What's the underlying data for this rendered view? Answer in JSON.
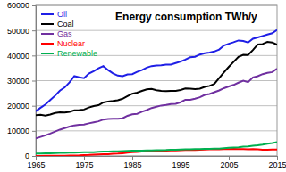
{
  "chart_data": {
    "type": "line",
    "title": "Energy consumption TWh/y",
    "x": [
      1965,
      1966,
      1967,
      1968,
      1969,
      1970,
      1971,
      1972,
      1973,
      1974,
      1975,
      1976,
      1977,
      1978,
      1979,
      1980,
      1981,
      1982,
      1983,
      1984,
      1985,
      1986,
      1987,
      1988,
      1989,
      1990,
      1991,
      1992,
      1993,
      1994,
      1995,
      1996,
      1997,
      1998,
      1999,
      2000,
      2001,
      2002,
      2003,
      2004,
      2005,
      2006,
      2007,
      2008,
      2009,
      2010,
      2011,
      2012,
      2013,
      2014,
      2015
    ],
    "series": [
      {
        "name": "Oil",
        "color": "#1f1fe6",
        "values": [
          17800,
          19200,
          20500,
          22300,
          24000,
          26000,
          27300,
          29300,
          31800,
          31300,
          31000,
          32800,
          33800,
          34900,
          35800,
          34200,
          32900,
          32000,
          31800,
          32500,
          32600,
          33500,
          34200,
          35200,
          35800,
          36000,
          36100,
          36400,
          36400,
          37000,
          37600,
          38400,
          39300,
          39500,
          40400,
          40900,
          41200,
          41600,
          42400,
          44000,
          44700,
          45300,
          46000,
          45800,
          45200,
          46700,
          47200,
          47800,
          48400,
          48900,
          50200
        ]
      },
      {
        "name": "Coal",
        "color": "#000000",
        "values": [
          16200,
          16400,
          16100,
          16500,
          17100,
          17400,
          17300,
          17600,
          18200,
          18300,
          18500,
          19300,
          19900,
          20200,
          21300,
          21700,
          21900,
          22200,
          22800,
          23800,
          24800,
          25200,
          25900,
          26500,
          26700,
          26200,
          25900,
          25800,
          25900,
          25900,
          26300,
          26900,
          26800,
          26600,
          26800,
          27500,
          27900,
          28700,
          31000,
          33300,
          35500,
          37500,
          39500,
          40300,
          40200,
          42200,
          44400,
          44600,
          45400,
          45200,
          44300
        ]
      },
      {
        "name": "Gas",
        "color": "#7030a0",
        "values": [
          7000,
          7600,
          8200,
          8900,
          9700,
          10500,
          11100,
          11700,
          12200,
          12400,
          12500,
          13000,
          13400,
          13800,
          14500,
          14700,
          14800,
          14800,
          15000,
          16000,
          16600,
          16800,
          17600,
          18300,
          19100,
          19600,
          20100,
          20300,
          20700,
          20800,
          21400,
          22400,
          22400,
          22800,
          23400,
          24300,
          24700,
          25400,
          26100,
          27000,
          27700,
          28300,
          29200,
          30000,
          29400,
          31300,
          31800,
          32600,
          33100,
          33400,
          34800
        ]
      },
      {
        "name": "Nuclear",
        "color": "#ff0000",
        "values": [
          30,
          40,
          50,
          60,
          70,
          80,
          110,
          150,
          200,
          250,
          380,
          420,
          530,
          640,
          680,
          710,
          850,
          940,
          1100,
          1300,
          1500,
          1600,
          1750,
          1900,
          1950,
          2000,
          2100,
          2120,
          2200,
          2250,
          2330,
          2400,
          2390,
          2430,
          2520,
          2580,
          2650,
          2690,
          2640,
          2760,
          2770,
          2800,
          2740,
          2740,
          2700,
          2760,
          2650,
          2470,
          2490,
          2540,
          2570
        ]
      },
      {
        "name": "Renewable",
        "color": "#00b050",
        "values": [
          950,
          1000,
          1030,
          1080,
          1150,
          1200,
          1250,
          1300,
          1330,
          1450,
          1500,
          1510,
          1550,
          1660,
          1740,
          1780,
          1830,
          1880,
          1990,
          2050,
          2090,
          2120,
          2130,
          2200,
          2200,
          2270,
          2340,
          2360,
          2480,
          2500,
          2610,
          2650,
          2700,
          2740,
          2790,
          2870,
          2830,
          2900,
          2940,
          3130,
          3250,
          3390,
          3500,
          3710,
          3790,
          4080,
          4290,
          4550,
          4870,
          5150,
          5500
        ]
      }
    ],
    "xlim": [
      1965,
      2015
    ],
    "xticks": [
      1965,
      1975,
      1985,
      1995,
      2005,
      2015
    ],
    "ylim": [
      0,
      60000
    ],
    "yticks": [
      0,
      10000,
      20000,
      30000,
      40000,
      50000,
      60000
    ],
    "grid": true,
    "legend": "top-left"
  }
}
